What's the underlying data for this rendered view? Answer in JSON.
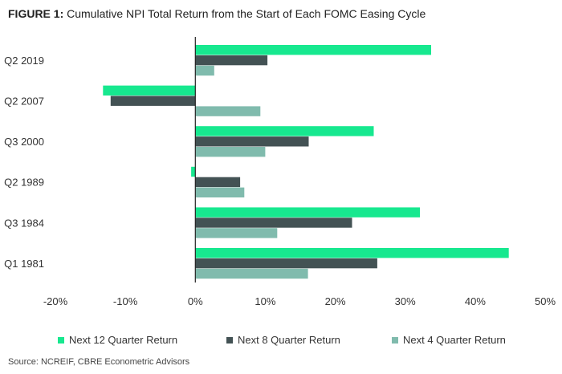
{
  "title": {
    "lead": "FIGURE 1:",
    "text": " Cumulative NPI Total Return from the Start of Each FOMC Easing Cycle"
  },
  "source": "Source: NCREIF, CBRE Econometric Advisors",
  "chart_data": {
    "type": "bar",
    "orientation": "horizontal",
    "title": "FIGURE 1: Cumulative NPI Total Return from the Start of Each FOMC Easing Cycle",
    "categories": [
      "Q2 2019",
      "Q2 2007",
      "Q3 2000",
      "Q2 1989",
      "Q3 1984",
      "Q1 1981"
    ],
    "series": [
      {
        "name": "Next 12 Quarter Return",
        "color": "#17e88f",
        "values": [
          33.7,
          -13.2,
          25.5,
          -0.6,
          32.1,
          44.8
        ]
      },
      {
        "name": "Next 8 Quarter Return",
        "color": "#435254",
        "values": [
          10.3,
          -12.1,
          16.2,
          6.4,
          22.4,
          26.0
        ]
      },
      {
        "name": "Next 4 Quarter Return",
        "color": "#80bbad",
        "values": [
          2.7,
          9.3,
          10.0,
          7.0,
          11.7,
          16.1
        ]
      }
    ],
    "xlim": [
      -20,
      50
    ],
    "xticks": [
      -20,
      -10,
      0,
      10,
      20,
      30,
      40,
      50
    ],
    "xtick_labels": [
      "-20%",
      "-10%",
      "0%",
      "10%",
      "20%",
      "30%",
      "40%",
      "50%"
    ],
    "grid": false,
    "legend_position": "bottom"
  }
}
